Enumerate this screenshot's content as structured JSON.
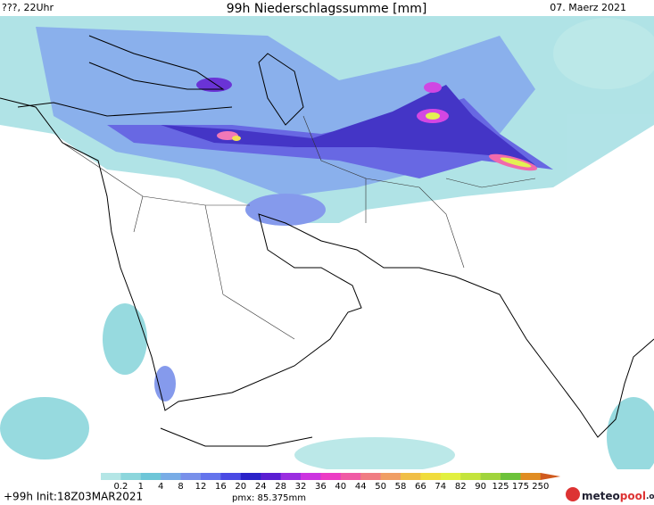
{
  "header": {
    "left": "???, 22Uhr",
    "title": "99h Niederschlagssumme [mm]",
    "right": "07. Maerz 2021"
  },
  "legend": {
    "labels": [
      "0.2",
      "1",
      "4",
      "8",
      "12",
      "16",
      "20",
      "24",
      "28",
      "32",
      "36",
      "40",
      "44",
      "50",
      "58",
      "66",
      "74",
      "82",
      "90",
      "125",
      "175",
      "250"
    ],
    "colors": [
      "#b4e6e6",
      "#8cd6dc",
      "#6ec6d8",
      "#78ace6",
      "#7890ea",
      "#6474ec",
      "#4a4ae4",
      "#2a22c8",
      "#5a1ed2",
      "#9a2ee0",
      "#cc34e0",
      "#ec3cc4",
      "#f05aa4",
      "#f07c82",
      "#f09e64",
      "#f0be46",
      "#f0dc3c",
      "#e2f040",
      "#c4e43c",
      "#a0d43c",
      "#6cc23a",
      "#e08c22",
      "#d05a1e"
    ]
  },
  "footer": {
    "left": "+99h Init:18Z03MAR2021",
    "center": "pmx: 85.375mm",
    "logo_a": "meteo",
    "logo_b": "pool",
    "logo_c": ".org"
  }
}
